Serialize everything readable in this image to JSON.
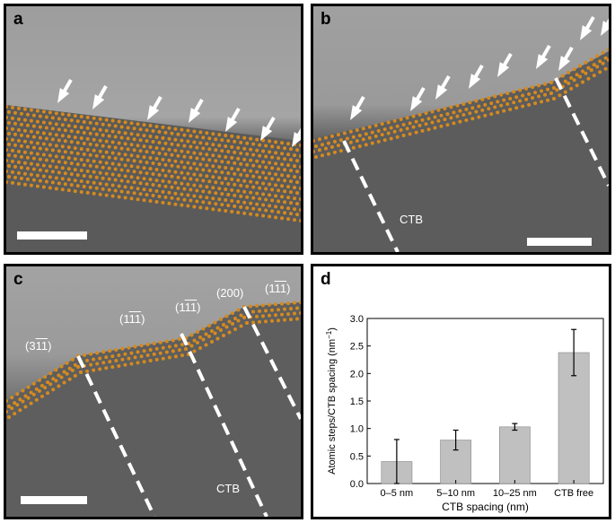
{
  "panels": {
    "a": {
      "label": "a"
    },
    "b": {
      "label": "b",
      "ctb_label": "CTB"
    },
    "c": {
      "label": "c",
      "ctb_label": "CTB",
      "planes": [
        {
          "text": "(3",
          "bar": "11",
          "close": ")"
        },
        {
          "text": "(1",
          "bar": "11",
          "close": ")"
        },
        {
          "text": "(1",
          "bar": "11",
          "close": ")"
        },
        {
          "text": "(200)",
          "bar": "",
          "close": ""
        },
        {
          "text": "(1",
          "bar": "11",
          "close": ")"
        }
      ]
    },
    "d": {
      "label": "d"
    }
  },
  "chart_data": {
    "type": "bar",
    "categories": [
      "0–5 nm",
      "5–10 nm",
      "10–25 nm",
      "CTB free"
    ],
    "values": [
      0.4,
      0.79,
      1.03,
      2.38
    ],
    "errors": [
      0.4,
      0.18,
      0.06,
      0.42
    ],
    "xlabel": "CTB spacing (nm)",
    "ylabel": "Atomic steps/CTB spacing (nm",
    "ylabel_sup": "−1",
    "ylabel_close": ")",
    "ylim": [
      0,
      3.0
    ],
    "yticks": [
      "0.0",
      "0.5",
      "1.0",
      "1.5",
      "2.0",
      "2.5",
      "3.0"
    ],
    "bar_color": "#c0c0c0",
    "grid": false
  }
}
